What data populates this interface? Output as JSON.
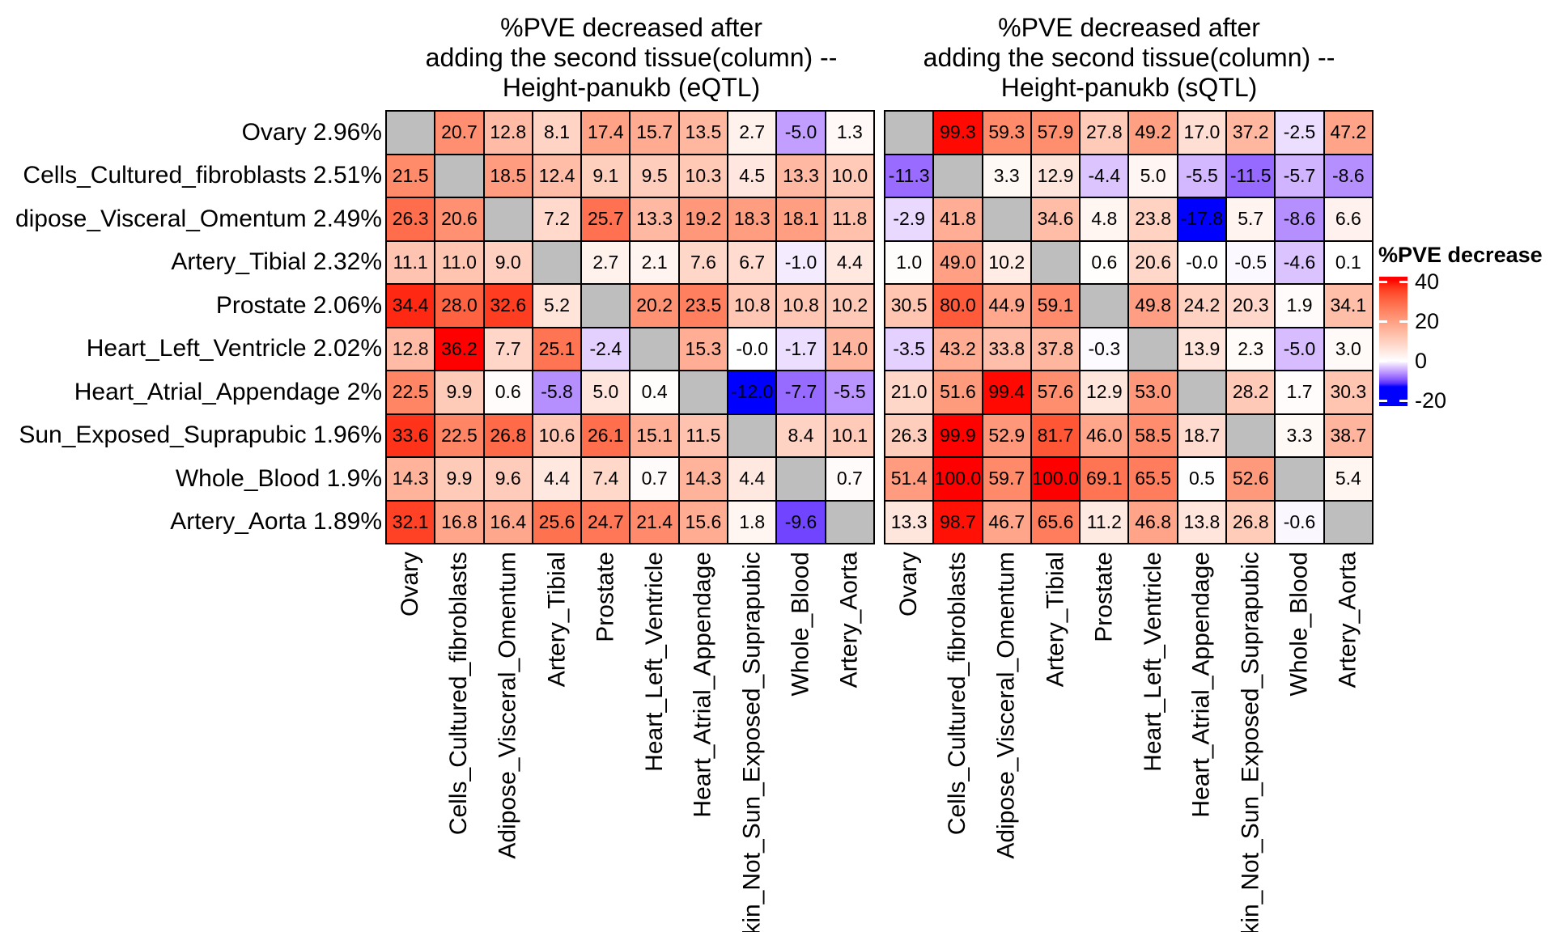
{
  "figure": {
    "titles": {
      "left": [
        "%PVE decreased after",
        "adding the second tissue(column) --",
        "Height-panukb (eQTL)"
      ],
      "right": [
        "%PVE decreased after",
        "adding the second tissue(column) --",
        "Height-panukb (sQTL)"
      ]
    }
  },
  "axes": {
    "rows": [
      "Ovary 2.96%",
      "Cells_Cultured_fibroblasts 2.51%",
      "dipose_Visceral_Omentum 2.49%",
      "Artery_Tibial 2.32%",
      "Prostate 2.06%",
      "Heart_Left_Ventricle 2.02%",
      "Heart_Atrial_Appendage 2%",
      "Sun_Exposed_Suprapubic 1.96%",
      "Whole_Blood 1.9%",
      "Artery_Aorta 1.89%"
    ],
    "columns": [
      "Ovary",
      "Cells_Cultured_fibroblasts",
      "Adipose_Visceral_Omentum",
      "Artery_Tibial",
      "Prostate",
      "Heart_Left_Ventricle",
      "Heart_Atrial_Appendage",
      "Skin_Not_Sun_Exposed_Suprapubic",
      "Whole_Blood",
      "Artery_Aorta"
    ]
  },
  "legend": {
    "title": "%PVE decrease",
    "ticks": [
      "40",
      "20",
      "0",
      "-20"
    ]
  },
  "colors": {
    "high": "#FF0000",
    "mid": "#FFFFFF",
    "low": "#0000FF",
    "diagonal": "#BEBEBE",
    "border": "#000000"
  },
  "chart_data": [
    {
      "type": "heatmap",
      "title": "%PVE decreased after adding the second tissue(column) -- Height-panukb (eQTL)",
      "rows": [
        "Ovary 2.96%",
        "Cells_Cultured_fibroblasts 2.51%",
        "dipose_Visceral_Omentum 2.49%",
        "Artery_Tibial 2.32%",
        "Prostate 2.06%",
        "Heart_Left_Ventricle 2.02%",
        "Heart_Atrial_Appendage 2%",
        "Sun_Exposed_Suprapubic 1.96%",
        "Whole_Blood 1.9%",
        "Artery_Aorta 1.89%"
      ],
      "columns": [
        "Ovary",
        "Cells_Cultured_fibroblasts",
        "Adipose_Visceral_Omentum",
        "Artery_Tibial",
        "Prostate",
        "Heart_Left_Ventricle",
        "Heart_Atrial_Appendage",
        "Skin_Not_Sun_Exposed_Suprapubic",
        "Whole_Blood",
        "Artery_Aorta"
      ],
      "values": [
        [
          null,
          "20.7",
          "12.8",
          "8.1",
          "17.4",
          "15.7",
          "13.5",
          "2.7",
          "-5.0",
          "1.3"
        ],
        [
          "21.5",
          null,
          "18.5",
          "12.4",
          "9.1",
          "9.5",
          "10.3",
          "4.5",
          "13.3",
          "10.0"
        ],
        [
          "26.3",
          "20.6",
          null,
          "7.2",
          "25.7",
          "13.3",
          "19.2",
          "18.3",
          "18.1",
          "11.8"
        ],
        [
          "11.1",
          "11.0",
          "9.0",
          null,
          "2.7",
          "2.1",
          "7.6",
          "6.7",
          "-1.0",
          "4.4"
        ],
        [
          "34.4",
          "28.0",
          "32.6",
          "5.2",
          null,
          "20.2",
          "23.5",
          "10.8",
          "10.8",
          "10.2"
        ],
        [
          "12.8",
          "36.2",
          "7.7",
          "25.1",
          "-2.4",
          null,
          "15.3",
          "-0.0",
          "-1.7",
          "14.0"
        ],
        [
          "22.5",
          "9.9",
          "0.6",
          "-5.8",
          "5.0",
          "0.4",
          null,
          "-12.0",
          "-7.7",
          "-5.5"
        ],
        [
          "33.6",
          "22.5",
          "26.8",
          "10.6",
          "26.1",
          "15.1",
          "11.5",
          null,
          "8.4",
          "10.1"
        ],
        [
          "14.3",
          "9.9",
          "9.6",
          "4.4",
          "7.4",
          "0.7",
          "14.3",
          "4.4",
          null,
          "0.7"
        ],
        [
          "32.1",
          "16.8",
          "16.4",
          "25.6",
          "24.7",
          "21.4",
          "15.6",
          "1.8",
          "-9.6",
          null
        ]
      ],
      "color_scale": {
        "low": "#0000FF",
        "mid": "#FFFFFF",
        "high": "#FF0000",
        "neg_saturation": -12.0,
        "pos_saturation": 36.2,
        "legend_title": "%PVE decrease",
        "legend_ticks": [
          40,
          20,
          0,
          -20
        ]
      }
    },
    {
      "type": "heatmap",
      "title": "%PVE decreased after adding the second tissue(column) -- Height-panukb (sQTL)",
      "rows": [
        "Ovary 2.96%",
        "Cells_Cultured_fibroblasts 2.51%",
        "dipose_Visceral_Omentum 2.49%",
        "Artery_Tibial 2.32%",
        "Prostate 2.06%",
        "Heart_Left_Ventricle 2.02%",
        "Heart_Atrial_Appendage 2%",
        "Sun_Exposed_Suprapubic 1.96%",
        "Whole_Blood 1.9%",
        "Artery_Aorta 1.89%"
      ],
      "columns": [
        "Ovary",
        "Cells_Cultured_fibroblasts",
        "Adipose_Visceral_Omentum",
        "Artery_Tibial",
        "Prostate",
        "Heart_Left_Ventricle",
        "Heart_Atrial_Appendage",
        "Skin_Not_Sun_Exposed_Suprapubic",
        "Whole_Blood",
        "Artery_Aorta"
      ],
      "values": [
        [
          null,
          "99.3",
          "59.3",
          "57.9",
          "27.8",
          "49.2",
          "17.0",
          "37.2",
          "-2.5",
          "47.2"
        ],
        [
          "-11.3",
          null,
          "3.3",
          "12.9",
          "-4.4",
          "5.0",
          "-5.5",
          "-11.5",
          "-5.7",
          "-8.6"
        ],
        [
          "-2.9",
          "41.8",
          null,
          "34.6",
          "4.8",
          "23.8",
          "-17.8",
          "5.7",
          "-8.6",
          "6.6"
        ],
        [
          "1.0",
          "49.0",
          "10.2",
          null,
          "0.6",
          "20.6",
          "-0.0",
          "-0.5",
          "-4.6",
          "0.1"
        ],
        [
          "30.5",
          "80.0",
          "44.9",
          "59.1",
          null,
          "49.8",
          "24.2",
          "20.3",
          "1.9",
          "34.1"
        ],
        [
          "-3.5",
          "43.2",
          "33.8",
          "37.8",
          "-0.3",
          null,
          "13.9",
          "2.3",
          "-5.0",
          "3.0"
        ],
        [
          "21.0",
          "51.6",
          "99.4",
          "57.6",
          "12.9",
          "53.0",
          null,
          "28.2",
          "1.7",
          "30.3"
        ],
        [
          "26.3",
          "99.9",
          "52.9",
          "81.7",
          "46.0",
          "58.5",
          "18.7",
          null,
          "3.3",
          "38.7"
        ],
        [
          "51.4",
          "100.0",
          "59.7",
          "100.0",
          "69.1",
          "65.5",
          "0.5",
          "52.6",
          null,
          "5.4"
        ],
        [
          "13.3",
          "98.7",
          "46.7",
          "65.6",
          "11.2",
          "46.8",
          "13.8",
          "26.8",
          "-0.6",
          null
        ]
      ],
      "color_scale": {
        "low": "#0000FF",
        "mid": "#FFFFFF",
        "high": "#FF0000",
        "neg_saturation": -17.8,
        "pos_saturation": 100.0,
        "legend_title": "%PVE decrease",
        "legend_ticks": [
          40,
          20,
          0,
          -20
        ]
      }
    }
  ]
}
